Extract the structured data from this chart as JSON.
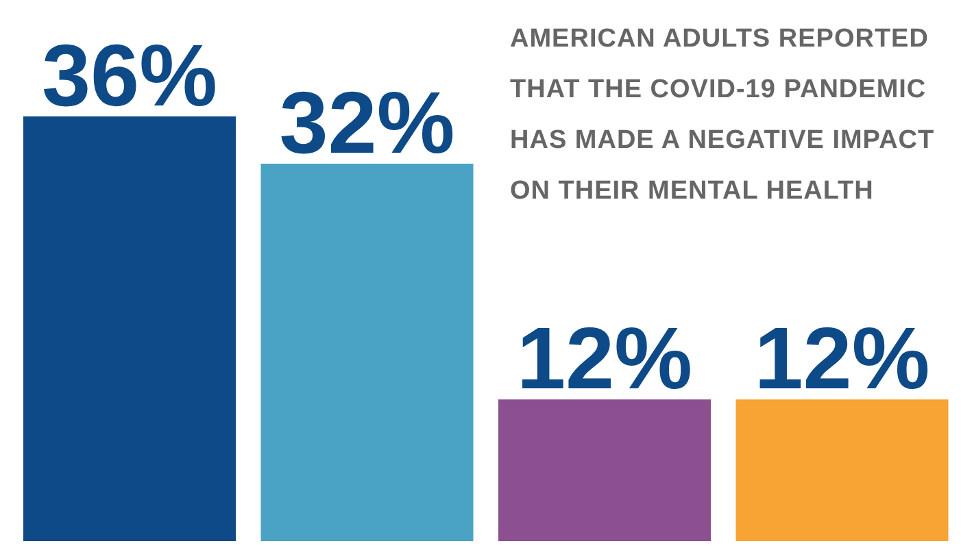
{
  "chart_data": {
    "type": "bar",
    "title": "AMERICAN ADULTS REPORTED THAT THE COVID-19 PANDEMIC HAS MADE A NEGATIVE IMPACT ON THEIR MENTAL HEALTH",
    "categories": [
      null,
      null,
      null,
      null
    ],
    "values": [
      36,
      32,
      12,
      12
    ],
    "value_labels": [
      "36%",
      "32%",
      "12%",
      "12%"
    ],
    "colors": [
      "#0d4a87",
      "#4aa3c4",
      "#8c4f8f",
      "#f7a434"
    ]
  }
}
